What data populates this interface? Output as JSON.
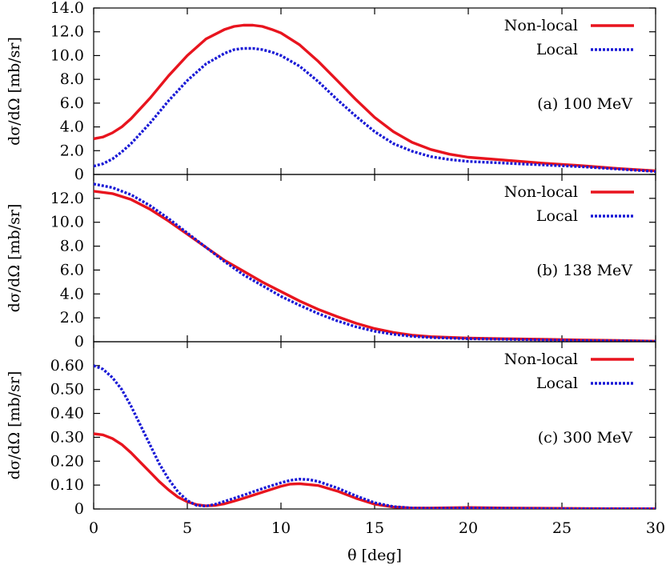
{
  "chart_data": [
    {
      "type": "line",
      "panel_label": "(a) 100 MeV",
      "ylabel": "dσ/dΩ [mb/sr]",
      "xlabel": "",
      "xlim": [
        0,
        30
      ],
      "ylim": [
        0,
        14
      ],
      "yticks": [
        0,
        2,
        4,
        6,
        8,
        10,
        12,
        14
      ],
      "ytick_labels": [
        "0",
        "2.0",
        "4.0",
        "6.0",
        "8.0",
        "10.0",
        "12.0",
        "14.0"
      ],
      "xticks": [
        0,
        5,
        10,
        15,
        20,
        25,
        30
      ],
      "legend_position": "top-right",
      "series": [
        {
          "name": "Non-local",
          "color": "#e8141e",
          "style": "solid",
          "x": [
            0,
            0.5,
            1,
            1.5,
            2,
            3,
            4,
            5,
            6,
            7,
            7.5,
            8,
            8.5,
            9,
            9.5,
            10,
            11,
            12,
            13,
            14,
            15,
            16,
            17,
            18,
            19,
            20,
            22,
            24,
            26,
            28,
            30
          ],
          "y": [
            3.0,
            3.15,
            3.5,
            4.0,
            4.7,
            6.4,
            8.3,
            10.0,
            11.4,
            12.2,
            12.45,
            12.55,
            12.55,
            12.45,
            12.2,
            11.9,
            10.9,
            9.5,
            7.9,
            6.3,
            4.8,
            3.6,
            2.7,
            2.1,
            1.7,
            1.45,
            1.2,
            0.95,
            0.75,
            0.5,
            0.3
          ]
        },
        {
          "name": "Local",
          "color": "#1a1ad6",
          "style": "dotted",
          "x": [
            0,
            0.5,
            1,
            1.5,
            2,
            3,
            4,
            5,
            6,
            7,
            7.5,
            8,
            8.5,
            9,
            9.5,
            10,
            11,
            12,
            13,
            14,
            15,
            16,
            17,
            18,
            19,
            20,
            22,
            24,
            26,
            28,
            30
          ],
          "y": [
            0.7,
            0.9,
            1.3,
            1.9,
            2.6,
            4.3,
            6.2,
            7.9,
            9.3,
            10.2,
            10.5,
            10.6,
            10.6,
            10.5,
            10.3,
            10.0,
            9.1,
            7.8,
            6.3,
            4.9,
            3.6,
            2.6,
            1.95,
            1.5,
            1.25,
            1.1,
            0.95,
            0.8,
            0.65,
            0.45,
            0.25
          ]
        }
      ]
    },
    {
      "type": "line",
      "panel_label": "(b) 138 MeV",
      "ylabel": "dσ/dΩ [mb/sr]",
      "xlabel": "",
      "xlim": [
        0,
        30
      ],
      "ylim": [
        0,
        14
      ],
      "yticks": [
        0,
        2,
        4,
        6,
        8,
        10,
        12
      ],
      "ytick_labels": [
        "0",
        "2.0",
        "4.0",
        "6.0",
        "8.0",
        "10.0",
        "12.0"
      ],
      "xticks": [
        0,
        5,
        10,
        15,
        20,
        25,
        30
      ],
      "legend_position": "top-right",
      "series": [
        {
          "name": "Non-local",
          "color": "#e8141e",
          "style": "solid",
          "x": [
            0,
            1,
            2,
            3,
            4,
            5,
            6,
            7,
            8,
            9,
            10,
            11,
            12,
            13,
            14,
            15,
            16,
            17,
            18,
            20,
            22,
            24,
            26,
            28,
            30
          ],
          "y": [
            12.6,
            12.4,
            11.9,
            11.1,
            10.1,
            9.0,
            7.9,
            6.8,
            5.9,
            5.0,
            4.2,
            3.4,
            2.7,
            2.1,
            1.55,
            1.1,
            0.78,
            0.55,
            0.42,
            0.3,
            0.25,
            0.2,
            0.15,
            0.1,
            0.05
          ]
        },
        {
          "name": "Local",
          "color": "#1a1ad6",
          "style": "dotted",
          "x": [
            0,
            1,
            2,
            3,
            4,
            5,
            6,
            7,
            8,
            9,
            10,
            11,
            12,
            13,
            14,
            15,
            16,
            17,
            18,
            20,
            22,
            24,
            26,
            28,
            30
          ],
          "y": [
            13.2,
            12.9,
            12.3,
            11.4,
            10.3,
            9.1,
            7.9,
            6.7,
            5.6,
            4.7,
            3.8,
            3.05,
            2.35,
            1.75,
            1.25,
            0.88,
            0.62,
            0.45,
            0.35,
            0.25,
            0.2,
            0.15,
            0.1,
            0.07,
            0.03
          ]
        }
      ]
    },
    {
      "type": "line",
      "panel_label": "(c) 300 MeV",
      "ylabel": "dσ/dΩ [mb/sr]",
      "xlabel": "θ [deg]",
      "xlim": [
        0,
        30
      ],
      "ylim": [
        0,
        0.7
      ],
      "yticks": [
        0,
        0.1,
        0.2,
        0.3,
        0.4,
        0.5,
        0.6
      ],
      "ytick_labels": [
        "0",
        "0.10",
        "0.20",
        "0.30",
        "0.40",
        "0.50",
        "0.60"
      ],
      "xticks": [
        0,
        5,
        10,
        15,
        20,
        25,
        30
      ],
      "xtick_labels": [
        "0",
        "5",
        "10",
        "15",
        "20",
        "25",
        "30"
      ],
      "legend_position": "top-right",
      "series": [
        {
          "name": "Non-local",
          "color": "#e8141e",
          "style": "solid",
          "x": [
            0,
            0.5,
            1,
            1.5,
            2,
            2.5,
            3,
            3.5,
            4,
            4.5,
            5,
            5.5,
            6,
            6.5,
            7,
            7.5,
            8,
            9,
            10,
            10.5,
            11,
            12,
            13,
            14,
            15,
            16,
            17,
            18,
            20,
            22,
            24,
            26,
            28,
            30
          ],
          "y": [
            0.315,
            0.31,
            0.295,
            0.27,
            0.235,
            0.195,
            0.155,
            0.115,
            0.08,
            0.05,
            0.03,
            0.018,
            0.013,
            0.015,
            0.022,
            0.033,
            0.045,
            0.07,
            0.095,
            0.104,
            0.106,
            0.098,
            0.075,
            0.045,
            0.02,
            0.008,
            0.004,
            0.004,
            0.006,
            0.004,
            0.003,
            0.002,
            0.001,
            0.001
          ]
        },
        {
          "name": "Local",
          "color": "#1a1ad6",
          "style": "dotted",
          "x": [
            0,
            0.5,
            1,
            1.5,
            2,
            2.5,
            3,
            3.5,
            4,
            4.5,
            5,
            5.5,
            6,
            6.5,
            7,
            7.5,
            8,
            9,
            10,
            10.5,
            11,
            11.5,
            12,
            13,
            14,
            15,
            16,
            17,
            18,
            20,
            22,
            24,
            26,
            28,
            30
          ],
          "y": [
            0.6,
            0.585,
            0.55,
            0.5,
            0.43,
            0.35,
            0.27,
            0.19,
            0.125,
            0.072,
            0.035,
            0.015,
            0.012,
            0.02,
            0.032,
            0.045,
            0.058,
            0.085,
            0.11,
            0.12,
            0.125,
            0.123,
            0.115,
            0.088,
            0.055,
            0.026,
            0.01,
            0.004,
            0.003,
            0.004,
            0.003,
            0.002,
            0.001,
            0.001,
            0.001
          ]
        }
      ]
    }
  ]
}
